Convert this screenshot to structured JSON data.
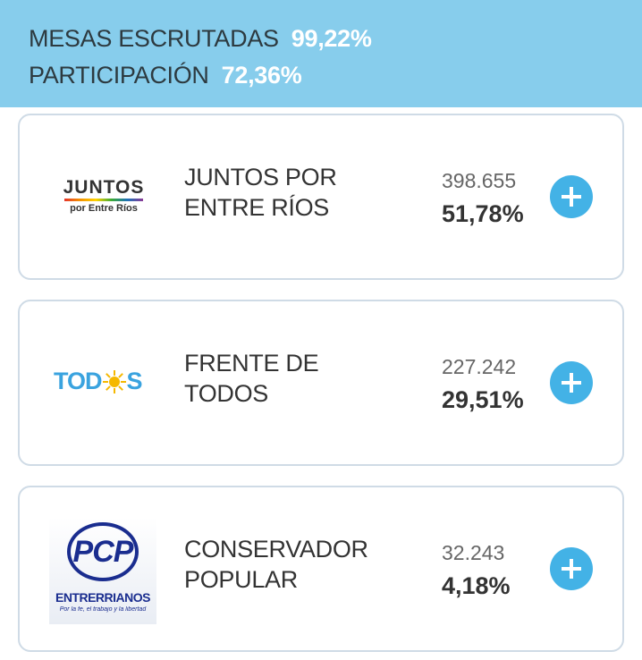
{
  "header": {
    "mesas_label": "MESAS ESCRUTADAS",
    "mesas_value": "99,22%",
    "participacion_label": "PARTICIPACIÓN",
    "participacion_value": "72,36%"
  },
  "parties": [
    {
      "name_line1": "JUNTOS POR",
      "name_line2": "ENTRE RÍOS",
      "votes": "398.655",
      "percent": "51,78%",
      "logo_text1": "JUNTOS",
      "logo_text2": "por Entre Ríos"
    },
    {
      "name_line1": "FRENTE DE",
      "name_line2": "TODOS",
      "votes": "227.242",
      "percent": "29,51%",
      "logo_text1": "TOD",
      "logo_text2": "S"
    },
    {
      "name_line1": "CONSERVADOR",
      "name_line2": "POPULAR",
      "votes": "32.243",
      "percent": "4,18%",
      "logo_text1": "PCP",
      "logo_text2": "ENTRERRIANOS",
      "logo_text3": "Por la fe, el trabajo y la libertad"
    }
  ],
  "colors": {
    "header_bg": "#87cdec",
    "accent_blue": "#43b2e6",
    "card_border": "#cfdbe6",
    "todos_blue": "#3aa3df",
    "pcp_navy": "#1a2d8f"
  },
  "icons": {
    "expand": "plus-icon"
  }
}
